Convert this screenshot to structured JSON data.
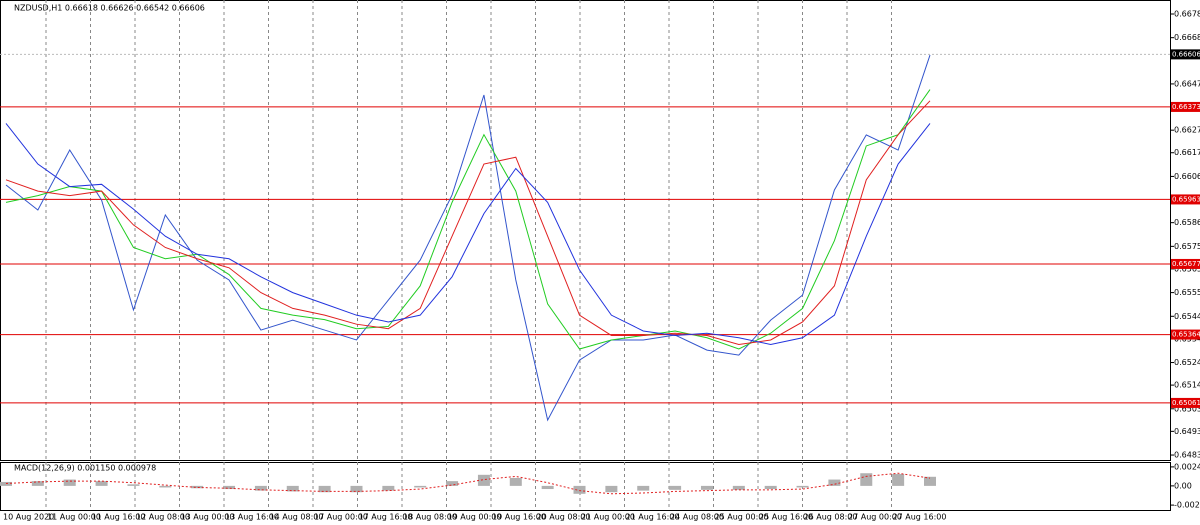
{
  "chart_data": [
    {
      "type": "line",
      "title": "NZDUSD,H1 0.66618 0.66626 0.66542 0.66606",
      "ylim": [
        0.64808,
        0.66847
      ],
      "yticks": [
        0.66785,
        {
          "value": 0.6668,
          "label": "0.66680"
        },
        0.66475,
        {
          "value": 0.6627,
          "label": "0.66270"
        },
        {
          "value": 0.6617,
          "label": "0.66170"
        },
        0.66065,
        0.65965,
        {
          "value": 0.6586,
          "label": "0.65860"
        },
        0.65755,
        0.65655,
        {
          "value": 0.6555,
          "label": "0.65550"
        },
        0.65445,
        0.65345,
        {
          "value": 0.6524,
          "label": "0.65240"
        },
        {
          "value": 0.6514,
          "label": "0.65140"
        },
        0.65035,
        0.64935,
        {
          "value": 0.6483,
          "label": "0.64830"
        }
      ],
      "x_labels": [
        "10 Aug 2020",
        "11 Aug 00:00",
        "11 Aug 16:00",
        "12 Aug 08:00",
        "13 Aug 00:00",
        "13 Aug 16:00",
        "14 Aug 08:00",
        "17 Aug 00:00",
        "17 Aug 16:00",
        "18 Aug 08:00",
        "19 Aug 00:00",
        "19 Aug 16:00",
        "20 Aug 08:00",
        "21 Aug 00:00",
        "21 Aug 16:00",
        "24 Aug 08:00",
        "25 Aug 00:00",
        "25 Aug 16:00",
        "26 Aug 08:00",
        "27 Aug 00:00",
        "27 Aug 16:00"
      ],
      "levels": [
        0.66373,
        0.65963,
        0.65677,
        0.65364,
        0.65061
      ],
      "level_color": "#e00000",
      "current_price": 0.66606,
      "grid": true,
      "series": [
        {
          "color": "#3355cc",
          "values": [
            0.66027,
            0.65916,
            0.66182,
            0.6596,
            0.65473,
            0.65894,
            0.65694,
            0.65606,
            0.65384,
            0.65428,
            0.65384,
            0.6534,
            0.65517,
            0.65694,
            0.65983,
            0.66426,
            0.65606,
            0.64985,
            0.65251,
            0.6534,
            0.6534,
            0.65362,
            0.65295,
            0.65273,
            0.65428,
            0.65539,
            0.66005,
            0.66249,
            0.66182,
            0.66603
          ]
        },
        {
          "color": "#22cc22",
          "values": [
            0.6595,
            0.6598,
            0.6602,
            0.66,
            0.6575,
            0.657,
            0.6572,
            0.6563,
            0.6548,
            0.6545,
            0.6543,
            0.6539,
            0.654,
            0.6558,
            0.6595,
            0.6625,
            0.66,
            0.655,
            0.653,
            0.6534,
            0.6536,
            0.6538,
            0.6535,
            0.653,
            0.6537,
            0.6548,
            0.6578,
            0.662,
            0.6625,
            0.6645
          ]
        },
        {
          "color": "#e02020",
          "values": [
            0.6605,
            0.66,
            0.6598,
            0.66,
            0.6585,
            0.6575,
            0.657,
            0.6566,
            0.6555,
            0.6548,
            0.6545,
            0.6541,
            0.6539,
            0.6548,
            0.658,
            0.6612,
            0.6615,
            0.658,
            0.6545,
            0.6536,
            0.6536,
            0.6537,
            0.6536,
            0.6532,
            0.6534,
            0.6542,
            0.6558,
            0.6605,
            0.6625,
            0.664
          ]
        },
        {
          "color": "#2233dd",
          "values": [
            0.663,
            0.6612,
            0.6602,
            0.6603,
            0.6592,
            0.658,
            0.6572,
            0.657,
            0.6562,
            0.6555,
            0.655,
            0.6545,
            0.6542,
            0.6545,
            0.6562,
            0.659,
            0.661,
            0.6595,
            0.6565,
            0.6545,
            0.6538,
            0.6536,
            0.6537,
            0.6535,
            0.6532,
            0.6535,
            0.6545,
            0.658,
            0.6612,
            0.663
          ]
        }
      ]
    },
    {
      "type": "bar",
      "title": "MACD(12,26,9) 0.001150 0.000978",
      "ylim": [
        -0.00305,
        0.00302
      ],
      "yticks": [
        0.002401,
        {
          "value": 0,
          "label": "0.00"
        },
        -0.00243
      ],
      "series": [
        {
          "color": "#b0b0b0",
          "values": [
            0.0005,
            0.0006,
            0.0008,
            0.0006,
            0.0002,
            -0.0002,
            -0.0003,
            -0.0004,
            -0.0006,
            -0.0007,
            -0.0008,
            -0.0008,
            -0.0006,
            -0.0002,
            0.0006,
            0.0014,
            0.001,
            -0.0004,
            -0.001,
            -0.0008,
            -0.0006,
            -0.0005,
            -0.0005,
            -0.0005,
            -0.0004,
            -0.0002,
            0.0008,
            0.0016,
            0.0015,
            0.00115
          ]
        },
        {
          "color": "#e02020",
          "values": [
            0.0003,
            0.0005,
            0.0006,
            0.0006,
            0.0004,
            0.0001,
            -0.0002,
            -0.0003,
            -0.0005,
            -0.0006,
            -0.0007,
            -0.0007,
            -0.0006,
            -0.0004,
            0.0001,
            0.0008,
            0.0012,
            0.0004,
            -0.0006,
            -0.001,
            -0.0009,
            -0.0007,
            -0.0006,
            -0.0005,
            -0.0005,
            -0.0004,
            0.0002,
            0.0012,
            0.0016,
            0.000978
          ]
        }
      ]
    }
  ]
}
